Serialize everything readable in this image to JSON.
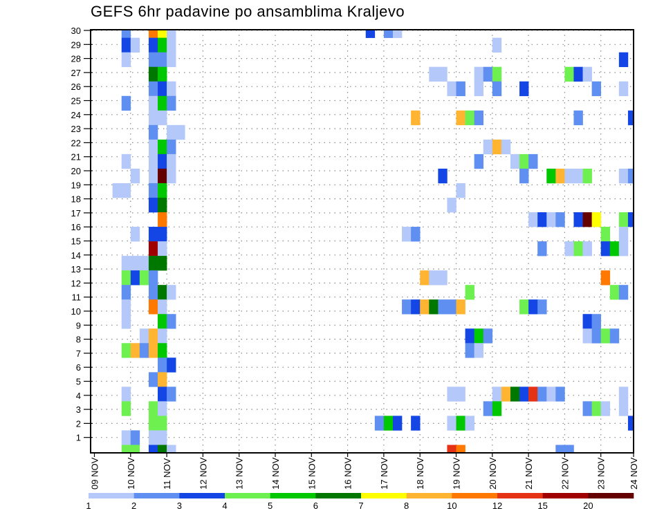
{
  "chart_data": {
    "type": "heatmap",
    "title": "GEFS 6hr padavine po ansamblima Kraljevo",
    "xlabel": "",
    "ylabel": "",
    "x_tick_labels": [
      "09 NOV",
      "10 NOV",
      "11 NOV",
      "12 NOV",
      "13 NOV",
      "14 NOV",
      "15 NOV",
      "16 NOV",
      "17 NOV",
      "18 NOV",
      "19 NOV",
      "20 NOV",
      "21 NOV",
      "22 NOV",
      "23 NOV",
      "24 NOV"
    ],
    "y_tick_labels": [
      "1",
      "2",
      "3",
      "4",
      "5",
      "6",
      "7",
      "8",
      "9",
      "10",
      "11",
      "12",
      "13",
      "14",
      "15",
      "16",
      "17",
      "18",
      "19",
      "20",
      "21",
      "22",
      "23",
      "24",
      "25",
      "26",
      "27",
      "28",
      "29",
      "30"
    ],
    "x_unit": "6-hour step index from 09 NOV 00 UTC",
    "y_unit": "ensemble member row",
    "grid": true,
    "colorbar": {
      "labels": [
        "1",
        "2",
        "3",
        "4",
        "5",
        "6",
        "7",
        "8",
        "10",
        "12",
        "15",
        "20"
      ],
      "colors": [
        "#b4c8fa",
        "#5f8ff0",
        "#1446e6",
        "#6ef050",
        "#00c800",
        "#007800",
        "#ffff00",
        "#ffb432",
        "#ff7800",
        "#e63214",
        "#a00000",
        "#640000"
      ]
    },
    "rows": [
      {
        "member": 29,
        "cells": [
          [
            3,
            1
          ],
          [
            6,
            8
          ],
          [
            7,
            6
          ],
          [
            8,
            0
          ],
          [
            30,
            2
          ],
          [
            32,
            1
          ],
          [
            33,
            0
          ]
        ]
      },
      {
        "member": 28,
        "cells": [
          [
            3,
            2
          ],
          [
            4,
            0
          ],
          [
            6,
            2
          ],
          [
            7,
            4
          ],
          [
            8,
            0
          ],
          [
            44,
            0
          ]
        ]
      },
      {
        "member": 27,
        "cells": [
          [
            3,
            0
          ],
          [
            6,
            1
          ],
          [
            7,
            1
          ],
          [
            8,
            0
          ],
          [
            58,
            2
          ]
        ]
      },
      {
        "member": 26,
        "cells": [
          [
            6,
            5
          ],
          [
            7,
            4
          ],
          [
            37,
            0
          ],
          [
            38,
            0
          ],
          [
            42,
            0
          ],
          [
            43,
            1
          ],
          [
            44,
            3
          ],
          [
            52,
            3
          ],
          [
            53,
            2
          ],
          [
            54,
            0
          ]
        ]
      },
      {
        "member": 25,
        "cells": [
          [
            6,
            1
          ],
          [
            7,
            2
          ],
          [
            8,
            0
          ],
          [
            39,
            0
          ],
          [
            40,
            1
          ],
          [
            42,
            0
          ],
          [
            44,
            1
          ],
          [
            47,
            2
          ],
          [
            55,
            1
          ],
          [
            58,
            0
          ]
        ]
      },
      {
        "member": 24,
        "cells": [
          [
            3,
            1
          ],
          [
            6,
            0
          ],
          [
            7,
            4
          ],
          [
            8,
            1
          ]
        ]
      },
      {
        "member": 23,
        "cells": [
          [
            6,
            0
          ],
          [
            7,
            0
          ],
          [
            35,
            7
          ],
          [
            40,
            7
          ],
          [
            41,
            3
          ],
          [
            42,
            1
          ],
          [
            53,
            1
          ],
          [
            59,
            2
          ]
        ]
      },
      {
        "member": 22,
        "cells": [
          [
            6,
            1
          ],
          [
            8,
            0
          ],
          [
            9,
            0
          ]
        ]
      },
      {
        "member": 21,
        "cells": [
          [
            6,
            0
          ],
          [
            7,
            4
          ],
          [
            8,
            1
          ],
          [
            43,
            0
          ],
          [
            44,
            7
          ],
          [
            45,
            0
          ]
        ]
      },
      {
        "member": 20,
        "cells": [
          [
            3,
            0
          ],
          [
            6,
            0
          ],
          [
            7,
            2
          ],
          [
            8,
            0
          ],
          [
            42,
            1
          ],
          [
            46,
            0
          ],
          [
            47,
            3
          ],
          [
            48,
            1
          ]
        ]
      },
      {
        "member": 19,
        "cells": [
          [
            4,
            0
          ],
          [
            6,
            0
          ],
          [
            7,
            11
          ],
          [
            8,
            0
          ],
          [
            38,
            2
          ],
          [
            47,
            1
          ],
          [
            50,
            4
          ],
          [
            51,
            7
          ],
          [
            52,
            0
          ],
          [
            53,
            0
          ],
          [
            54,
            3
          ],
          [
            58,
            0
          ],
          [
            59,
            1
          ]
        ]
      },
      {
        "member": 18,
        "cells": [
          [
            2,
            0
          ],
          [
            3,
            0
          ],
          [
            6,
            1
          ],
          [
            7,
            4
          ],
          [
            40,
            0
          ]
        ]
      },
      {
        "member": 17,
        "cells": [
          [
            6,
            2
          ],
          [
            7,
            5
          ],
          [
            39,
            0
          ]
        ]
      },
      {
        "member": 16,
        "cells": [
          [
            7,
            8
          ],
          [
            48,
            0
          ],
          [
            49,
            2
          ],
          [
            50,
            0
          ],
          [
            51,
            1
          ],
          [
            53,
            2
          ],
          [
            54,
            11
          ],
          [
            55,
            6
          ],
          [
            58,
            3
          ],
          [
            59,
            2
          ]
        ]
      },
      {
        "member": 15,
        "cells": [
          [
            4,
            0
          ],
          [
            6,
            2
          ],
          [
            7,
            2
          ],
          [
            34,
            0
          ],
          [
            35,
            1
          ],
          [
            56,
            3
          ],
          [
            58,
            0
          ]
        ]
      },
      {
        "member": 14,
        "cells": [
          [
            6,
            10
          ],
          [
            7,
            0
          ],
          [
            49,
            1
          ],
          [
            52,
            0
          ],
          [
            53,
            3
          ],
          [
            54,
            0
          ],
          [
            56,
            2
          ],
          [
            57,
            4
          ],
          [
            58,
            0
          ]
        ]
      },
      {
        "member": 13,
        "cells": [
          [
            3,
            0
          ],
          [
            4,
            0
          ],
          [
            5,
            0
          ],
          [
            6,
            5
          ],
          [
            7,
            5
          ]
        ]
      },
      {
        "member": 12,
        "cells": [
          [
            3,
            3
          ],
          [
            4,
            2
          ],
          [
            5,
            3
          ],
          [
            6,
            1
          ],
          [
            36,
            7
          ],
          [
            37,
            0
          ],
          [
            38,
            0
          ],
          [
            56,
            8
          ]
        ]
      },
      {
        "member": 11,
        "cells": [
          [
            3,
            1
          ],
          [
            6,
            1
          ],
          [
            7,
            5
          ],
          [
            8,
            0
          ],
          [
            41,
            3
          ],
          [
            57,
            3
          ],
          [
            58,
            1
          ]
        ]
      },
      {
        "member": 10,
        "cells": [
          [
            3,
            0
          ],
          [
            6,
            8
          ],
          [
            7,
            0
          ],
          [
            34,
            1
          ],
          [
            35,
            2
          ],
          [
            36,
            7
          ],
          [
            37,
            5
          ],
          [
            38,
            1
          ],
          [
            39,
            1
          ],
          [
            40,
            7
          ],
          [
            47,
            3
          ],
          [
            48,
            2
          ],
          [
            49,
            1
          ]
        ]
      },
      {
        "member": 9,
        "cells": [
          [
            3,
            0
          ],
          [
            7,
            4
          ],
          [
            8,
            1
          ],
          [
            54,
            2
          ],
          [
            55,
            1
          ]
        ]
      },
      {
        "member": 8,
        "cells": [
          [
            5,
            0
          ],
          [
            6,
            7
          ],
          [
            7,
            0
          ],
          [
            41,
            2
          ],
          [
            42,
            4
          ],
          [
            43,
            1
          ],
          [
            54,
            0
          ],
          [
            55,
            1
          ],
          [
            56,
            3
          ],
          [
            57,
            1
          ]
        ]
      },
      {
        "member": 7,
        "cells": [
          [
            3,
            3
          ],
          [
            4,
            7
          ],
          [
            5,
            1
          ],
          [
            6,
            7
          ],
          [
            7,
            4
          ],
          [
            41,
            1
          ],
          [
            42,
            0
          ]
        ]
      },
      {
        "member": 6,
        "cells": [
          [
            7,
            1
          ],
          [
            8,
            2
          ]
        ]
      },
      {
        "member": 5,
        "cells": [
          [
            6,
            1
          ],
          [
            7,
            7
          ]
        ]
      },
      {
        "member": 4,
        "cells": [
          [
            3,
            0
          ],
          [
            7,
            2
          ],
          [
            8,
            1
          ],
          [
            39,
            0
          ],
          [
            40,
            0
          ],
          [
            44,
            0
          ],
          [
            45,
            7
          ],
          [
            46,
            5
          ],
          [
            47,
            2
          ],
          [
            48,
            9
          ],
          [
            49,
            1
          ],
          [
            50,
            0
          ],
          [
            51,
            1
          ],
          [
            58,
            0
          ]
        ]
      },
      {
        "member": 3,
        "cells": [
          [
            3,
            3
          ],
          [
            6,
            3
          ],
          [
            7,
            0
          ],
          [
            43,
            1
          ],
          [
            44,
            4
          ],
          [
            54,
            1
          ],
          [
            55,
            3
          ],
          [
            56,
            0
          ],
          [
            58,
            0
          ]
        ]
      },
      {
        "member": 2,
        "cells": [
          [
            6,
            3
          ],
          [
            7,
            3
          ],
          [
            31,
            1
          ],
          [
            32,
            4
          ],
          [
            33,
            2
          ],
          [
            35,
            2
          ],
          [
            39,
            0
          ],
          [
            40,
            4
          ],
          [
            41,
            0
          ],
          [
            59,
            2
          ]
        ]
      },
      {
        "member": 1,
        "cells": [
          [
            3,
            0
          ],
          [
            4,
            1
          ],
          [
            6,
            0
          ],
          [
            7,
            0
          ]
        ]
      },
      {
        "member": 0,
        "cells": [
          [
            3,
            3
          ],
          [
            4,
            3
          ],
          [
            6,
            2
          ],
          [
            7,
            5
          ],
          [
            8,
            0
          ],
          [
            39,
            9
          ],
          [
            40,
            8
          ],
          [
            51,
            1
          ],
          [
            52,
            1
          ]
        ]
      }
    ]
  }
}
